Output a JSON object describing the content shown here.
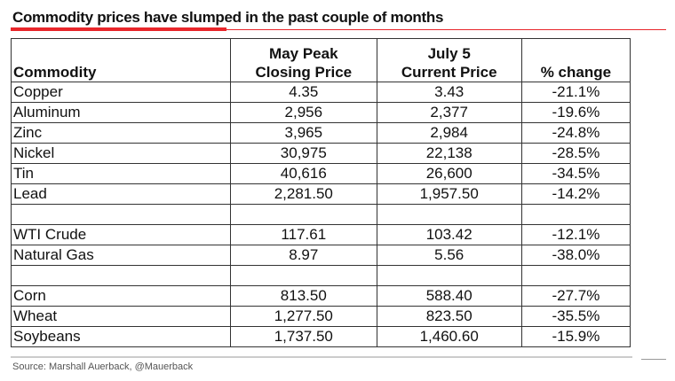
{
  "title": "Commodity prices have slumped in the past couple of months",
  "source": "Source: Marshall Auerback, @Mauerback",
  "colors": {
    "accent": "#e8262a"
  },
  "chart_data": {
    "type": "table",
    "columns": [
      "Commodity",
      "May Peak Closing Price",
      "July 5 Current Price",
      "% change"
    ],
    "column_lines": [
      [
        "Commodity"
      ],
      [
        "May Peak",
        "Closing Price"
      ],
      [
        "July 5",
        "Current Price"
      ],
      [
        "% change"
      ]
    ],
    "rows": [
      [
        "Copper",
        "4.35",
        "3.43",
        "-21.1%"
      ],
      [
        "Aluminum",
        "2,956",
        "2,377",
        "-19.6%"
      ],
      [
        "Zinc",
        "3,965",
        "2,984",
        "-24.8%"
      ],
      [
        "Nickel",
        "30,975",
        "22,138",
        "-28.5%"
      ],
      [
        "Tin",
        "40,616",
        "26,600",
        "-34.5%"
      ],
      [
        "Lead",
        "2,281.50",
        "1,957.50",
        "-14.2%"
      ],
      [
        "",
        "",
        "",
        ""
      ],
      [
        "WTI Crude",
        "117.61",
        "103.42",
        "-12.1%"
      ],
      [
        "Natural Gas",
        "8.97",
        "5.56",
        "-38.0%"
      ],
      [
        "",
        "",
        "",
        ""
      ],
      [
        "Corn",
        "813.50",
        "588.40",
        "-27.7%"
      ],
      [
        "Wheat",
        "1,277.50",
        "823.50",
        "-35.5%"
      ],
      [
        "Soybeans",
        "1,737.50",
        "1,460.60",
        "-15.9%"
      ]
    ]
  }
}
